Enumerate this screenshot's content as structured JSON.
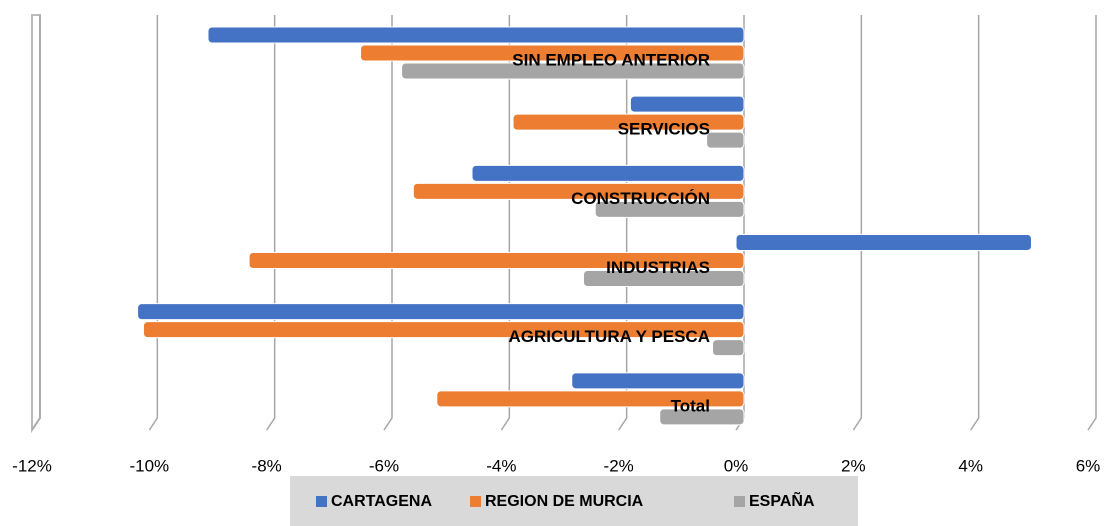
{
  "chart_data": {
    "type": "bar",
    "orientation": "horizontal",
    "categories": [
      "Total",
      "AGRICULTURA Y PESCA",
      "INDUSTRIAS",
      "CONSTRUCCIÓN",
      "SERVICIOS",
      "SIN EMPLEO ANTERIOR"
    ],
    "series": [
      {
        "name": "CARTAGENA",
        "color": "#4472c4",
        "values": [
          -2.8,
          -10.2,
          4.9,
          -4.5,
          -1.8,
          -9.0
        ]
      },
      {
        "name": "REGION DE MURCIA",
        "color": "#ed7d31",
        "values": [
          -5.1,
          -10.1,
          -8.3,
          -5.5,
          -3.8,
          -6.4
        ]
      },
      {
        "name": "ESPAÑA",
        "color": "#a5a5a5",
        "values": [
          -1.3,
          -0.4,
          -2.6,
          -2.4,
          -0.5,
          -5.7
        ]
      }
    ],
    "xlim": [
      -12,
      6
    ],
    "xticks": [
      {
        "value": -12,
        "label": "-12%"
      },
      {
        "value": -10,
        "label": "-10%"
      },
      {
        "value": -8,
        "label": "-8%"
      },
      {
        "value": -6,
        "label": "-6%"
      },
      {
        "value": -4,
        "label": "-4%"
      },
      {
        "value": -2,
        "label": "-2%"
      },
      {
        "value": 0,
        "label": "0%"
      },
      {
        "value": 2,
        "label": "2%"
      },
      {
        "value": 4,
        "label": "4%"
      },
      {
        "value": 6,
        "label": "6%"
      }
    ],
    "grid": true,
    "legend": "bottom"
  }
}
